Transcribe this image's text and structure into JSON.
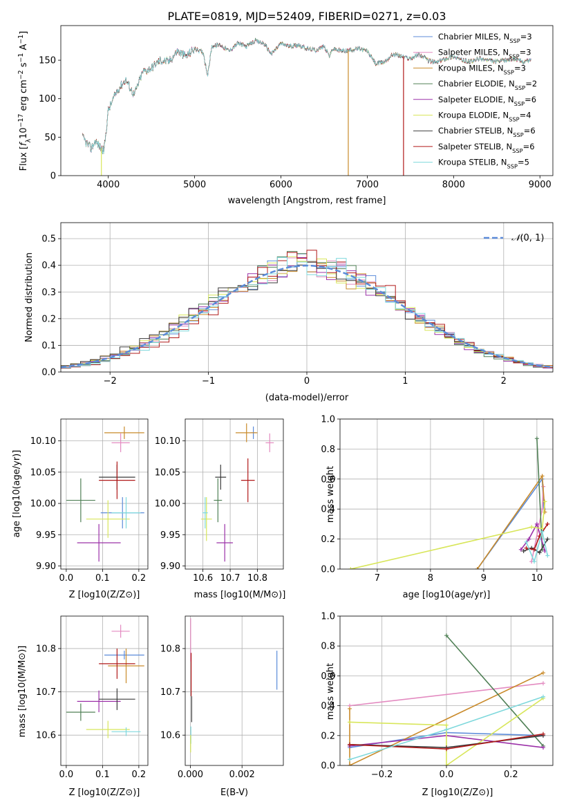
{
  "figure": {
    "title": "PLATE=0819, MJD=52409, FIBERID=0271, z=0.03"
  },
  "colors": {
    "Chabrier MILES": "#5b8bd9",
    "Salpeter MILES": "#e38ac0",
    "Kroupa MILES": "#c98a2a",
    "Chabrier ELODIE": "#4f7f55",
    "Salpeter ELODIE": "#9b30a8",
    "Kroupa ELODIE": "#d8e65a",
    "Chabrier STELIB": "#3a3a3a",
    "Salpeter STELIB": "#b01818",
    "Kroupa STELIB": "#7ed8dc"
  },
  "chart_data": [
    {
      "id": "spectrum",
      "type": "line",
      "title": "PLATE=0819, MJD=52409, FIBERID=0271, z=0.03",
      "xlabel": "wavelength [Angstrom, rest frame]",
      "ylabel": "Flux [f_λ 10^-17 erg cm^-2 s^-1 A^-1]",
      "xlim": [
        3450,
        9150
      ],
      "ylim": [
        0,
        195
      ],
      "xticks": [
        4000,
        5000,
        6000,
        7000,
        8000,
        9000
      ],
      "yticks": [
        0,
        50,
        100,
        150
      ],
      "grid": false,
      "legend_position": "top-right",
      "spectrum_x": [
        3700,
        3750,
        3800,
        3850,
        3900,
        3950,
        4000,
        4100,
        4200,
        4300,
        4400,
        4500,
        4600,
        4700,
        4800,
        4900,
        5000,
        5100,
        5150,
        5200,
        5300,
        5400,
        5500,
        5600,
        5700,
        5800,
        5890,
        6000,
        6100,
        6200,
        6300,
        6400,
        6500,
        6563,
        6600,
        6700,
        6800,
        6900,
        7000,
        7100,
        7200,
        7300,
        7400,
        7500,
        7600,
        7700,
        7800,
        7900,
        8000,
        8100,
        8200,
        8300,
        8400,
        8500,
        8600,
        8700,
        8800,
        8900
      ],
      "spectrum_y": [
        50,
        42,
        35,
        45,
        38,
        32,
        85,
        110,
        125,
        105,
        135,
        140,
        150,
        148,
        162,
        155,
        165,
        160,
        130,
        168,
        170,
        162,
        172,
        168,
        175,
        172,
        158,
        172,
        168,
        170,
        165,
        163,
        168,
        155,
        165,
        162,
        163,
        165,
        162,
        145,
        148,
        158,
        155,
        152,
        158,
        150,
        147,
        152,
        155,
        150,
        148,
        152,
        150,
        148,
        150,
        152,
        148,
        150
      ],
      "series": [
        {
          "name": "Chabrier MILES, N_SSP=3",
          "n_ssp": 3
        },
        {
          "name": "Salpeter MILES, N_SSP=3",
          "n_ssp": 3
        },
        {
          "name": "Kroupa MILES, N_SSP=3",
          "n_ssp": 3
        },
        {
          "name": "Chabrier ELODIE, N_SSP=2",
          "n_ssp": 2
        },
        {
          "name": "Salpeter ELODIE, N_SSP=6",
          "n_ssp": 6
        },
        {
          "name": "Kroupa ELODIE, N_SSP=4",
          "n_ssp": 4
        },
        {
          "name": "Chabrier STELIB, N_SSP=6",
          "n_ssp": 6
        },
        {
          "name": "Salpeter STELIB, N_SSP=6",
          "n_ssp": 6
        },
        {
          "name": "Kroupa STELIB, N_SSP=5",
          "n_ssp": 5
        }
      ],
      "legend_entries": [
        {
          "base": "Chabrier MILES, N",
          "sub": "SSP",
          "tail": "=3",
          "model": "Chabrier MILES"
        },
        {
          "base": "Salpeter MILES, N",
          "sub": "SSP",
          "tail": "=3",
          "model": "Salpeter MILES"
        },
        {
          "base": "Kroupa MILES, N",
          "sub": "SSP",
          "tail": "=3",
          "model": "Kroupa MILES"
        },
        {
          "base": "Chabrier ELODIE, N",
          "sub": "SSP",
          "tail": "=2",
          "model": "Chabrier ELODIE"
        },
        {
          "base": "Salpeter ELODIE, N",
          "sub": "SSP",
          "tail": "=6",
          "model": "Salpeter ELODIE"
        },
        {
          "base": "Kroupa ELODIE, N",
          "sub": "SSP",
          "tail": "=4",
          "model": "Kroupa ELODIE"
        },
        {
          "base": "Chabrier STELIB, N",
          "sub": "SSP",
          "tail": "=6",
          "model": "Chabrier STELIB"
        },
        {
          "base": "Salpeter STELIB, N",
          "sub": "SSP",
          "tail": "=6",
          "model": "Salpeter STELIB"
        },
        {
          "base": "Kroupa STELIB, N",
          "sub": "SSP",
          "tail": "=5",
          "model": "Kroupa STELIB"
        }
      ],
      "drops": [
        {
          "model": "Kroupa ELODIE",
          "x": 3920
        },
        {
          "model": "Kroupa MILES",
          "x": 6780
        },
        {
          "model": "Salpeter STELIB",
          "x": 7420
        }
      ]
    },
    {
      "id": "residuals",
      "type": "histogram",
      "xlabel": "(data-model)/error",
      "ylabel": "Normed distribution",
      "xlim": [
        -2.5,
        2.5
      ],
      "ylim": [
        0,
        0.56
      ],
      "xticks": [
        -2,
        -1,
        0,
        1,
        2
      ],
      "yticks": [
        0.0,
        0.1,
        0.2,
        0.3,
        0.4,
        0.5
      ],
      "grid": true,
      "legend_position": "top-right",
      "reference_curve": {
        "label": "N(0, 1)",
        "mu": 0,
        "sigma": 1
      },
      "bin_width": 0.1
    },
    {
      "id": "age_vs_Z",
      "type": "scatter",
      "xlabel": "Z [log10(Z/Z_sun)]",
      "ylabel": "age [log10(age/yr)]",
      "xlim": [
        -0.015,
        0.225
      ],
      "ylim": [
        9.895,
        10.135
      ],
      "xticks": [
        0.0,
        0.1,
        0.2
      ],
      "yticks": [
        9.9,
        9.95,
        10.0,
        10.05,
        10.1
      ],
      "grid": true,
      "points": [
        {
          "model": "Chabrier MILES",
          "x": 0.155,
          "y": 9.985,
          "xerr": 0.06,
          "yerr": 0.025
        },
        {
          "model": "Salpeter MILES",
          "x": 0.15,
          "y": 10.097,
          "xerr": 0.025,
          "yerr": 0.015
        },
        {
          "model": "Kroupa MILES",
          "x": 0.16,
          "y": 10.113,
          "xerr": 0.055,
          "yerr": 0.01
        },
        {
          "model": "Chabrier ELODIE",
          "x": 0.04,
          "y": 10.005,
          "xerr": 0.04,
          "yerr": 0.035
        },
        {
          "model": "Salpeter ELODIE",
          "x": 0.09,
          "y": 9.937,
          "xerr": 0.06,
          "yerr": 0.03
        },
        {
          "model": "Kroupa ELODIE",
          "x": 0.115,
          "y": 9.975,
          "xerr": 0.06,
          "yerr": 0.03
        },
        {
          "model": "Chabrier STELIB",
          "x": 0.14,
          "y": 10.042,
          "xerr": 0.05,
          "yerr": 0.02
        },
        {
          "model": "Salpeter STELIB",
          "x": 0.14,
          "y": 10.037,
          "xerr": 0.05,
          "yerr": 0.03
        },
        {
          "model": "Kroupa STELIB",
          "x": 0.165,
          "y": 9.985,
          "xerr": 0.04,
          "yerr": 0.025
        }
      ]
    },
    {
      "id": "age_vs_mass",
      "type": "scatter",
      "xlabel": "mass [log10(M/M_sun)]",
      "ylabel": "",
      "xlim": [
        10.535,
        10.895
      ],
      "ylim": [
        9.895,
        10.135
      ],
      "xticks": [
        10.6,
        10.7,
        10.8
      ],
      "yticks": [
        9.9,
        9.95,
        10.0,
        10.05,
        10.1
      ],
      "grid": true,
      "points": [
        {
          "model": "Chabrier MILES",
          "x": 10.785,
          "y": 10.113,
          "xerr": 0.01,
          "yerr": 0.01
        },
        {
          "model": "Salpeter MILES",
          "x": 10.845,
          "y": 10.097,
          "xerr": 0.015,
          "yerr": 0.015
        },
        {
          "model": "Kroupa MILES",
          "x": 10.76,
          "y": 10.113,
          "xerr": 0.04,
          "yerr": 0.015
        },
        {
          "model": "Chabrier ELODIE",
          "x": 10.655,
          "y": 10.005,
          "xerr": 0.015,
          "yerr": 0.035
        },
        {
          "model": "Salpeter ELODIE",
          "x": 10.68,
          "y": 9.937,
          "xerr": 0.03,
          "yerr": 0.03
        },
        {
          "model": "Kroupa ELODIE",
          "x": 10.613,
          "y": 9.975,
          "xerr": 0.02,
          "yerr": 0.035
        },
        {
          "model": "Chabrier STELIB",
          "x": 10.665,
          "y": 10.042,
          "xerr": 0.02,
          "yerr": 0.02
        },
        {
          "model": "Salpeter STELIB",
          "x": 10.765,
          "y": 10.037,
          "xerr": 0.025,
          "yerr": 0.035
        },
        {
          "model": "Kroupa STELIB",
          "x": 10.608,
          "y": 9.985,
          "xerr": 0.01,
          "yerr": 0.025
        }
      ]
    },
    {
      "id": "weight_vs_age",
      "type": "line",
      "xlabel": "age [log10(age/yr)]",
      "ylabel": "mass weight",
      "xlim": [
        6.3,
        10.3
      ],
      "ylim": [
        0,
        1.0
      ],
      "xticks": [
        7,
        8,
        9,
        10
      ],
      "yticks": [
        0.0,
        0.2,
        0.4,
        0.6,
        0.8,
        1.0
      ],
      "grid": true,
      "series": [
        {
          "model": "Chabrier MILES",
          "x": [
            8.88,
            10.1,
            10.13
          ],
          "y": [
            0.0,
            0.6,
            0.4
          ]
        },
        {
          "model": "Salpeter MILES",
          "x": [
            9.9,
            10.1,
            10.12
          ],
          "y": [
            0.05,
            0.4,
            0.55
          ]
        },
        {
          "model": "Kroupa MILES",
          "x": [
            8.88,
            10.1,
            10.15
          ],
          "y": [
            0.0,
            0.62,
            0.38
          ]
        },
        {
          "model": "Chabrier ELODIE",
          "x": [
            10.0,
            10.1
          ],
          "y": [
            0.87,
            0.13
          ]
        },
        {
          "model": "Salpeter ELODIE",
          "x": [
            9.7,
            9.85,
            10.0,
            10.15
          ],
          "y": [
            0.13,
            0.2,
            0.3,
            0.12
          ]
        },
        {
          "model": "Kroupa ELODIE",
          "x": [
            6.5,
            9.9,
            10.1,
            10.15
          ],
          "y": [
            0.0,
            0.28,
            0.27,
            0.45
          ]
        },
        {
          "model": "Chabrier STELIB",
          "x": [
            9.75,
            9.9,
            10.05,
            10.2
          ],
          "y": [
            0.12,
            0.14,
            0.11,
            0.2
          ]
        },
        {
          "model": "Salpeter STELIB",
          "x": [
            9.8,
            9.95,
            10.05,
            10.2
          ],
          "y": [
            0.14,
            0.13,
            0.22,
            0.3
          ]
        },
        {
          "model": "Kroupa STELIB",
          "x": [
            9.8,
            9.95,
            10.1,
            10.2
          ],
          "y": [
            0.18,
            0.05,
            0.25,
            0.09
          ]
        }
      ]
    },
    {
      "id": "mass_vs_Z",
      "type": "scatter",
      "xlabel": "Z [log10(Z/Z_sun)]",
      "ylabel": "mass [log10(M/M_sun)]",
      "xlim": [
        -0.015,
        0.225
      ],
      "ylim": [
        10.53,
        10.875
      ],
      "xticks": [
        0.0,
        0.1,
        0.2
      ],
      "yticks": [
        10.6,
        10.7,
        10.8
      ],
      "grid": true,
      "points": [
        {
          "model": "Chabrier MILES",
          "x": 0.16,
          "y": 10.785,
          "xerr": 0.055,
          "yerr": 0.01
        },
        {
          "model": "Salpeter MILES",
          "x": 0.15,
          "y": 10.84,
          "xerr": 0.025,
          "yerr": 0.015
        },
        {
          "model": "Kroupa MILES",
          "x": 0.165,
          "y": 10.76,
          "xerr": 0.05,
          "yerr": 0.04
        },
        {
          "model": "Chabrier ELODIE",
          "x": 0.04,
          "y": 10.653,
          "xerr": 0.04,
          "yerr": 0.02
        },
        {
          "model": "Salpeter ELODIE",
          "x": 0.09,
          "y": 10.678,
          "xerr": 0.06,
          "yerr": 0.025
        },
        {
          "model": "Kroupa ELODIE",
          "x": 0.115,
          "y": 10.613,
          "xerr": 0.06,
          "yerr": 0.02
        },
        {
          "model": "Chabrier STELIB",
          "x": 0.14,
          "y": 10.683,
          "xerr": 0.05,
          "yerr": 0.025
        },
        {
          "model": "Salpeter STELIB",
          "x": 0.14,
          "y": 10.765,
          "xerr": 0.05,
          "yerr": 0.035
        },
        {
          "model": "Kroupa STELIB",
          "x": 0.165,
          "y": 10.608,
          "xerr": 0.04,
          "yerr": 0.01
        }
      ]
    },
    {
      "id": "mass_vs_EBV",
      "type": "scatter",
      "xlabel": "E(B-V)",
      "ylabel": "",
      "xlim": [
        -0.0002,
        0.0036
      ],
      "ylim": [
        10.53,
        10.875
      ],
      "xticks": [
        0.0,
        0.002
      ],
      "yticks": [
        10.6,
        10.7,
        10.8
      ],
      "grid": true,
      "points": [
        {
          "model": "Salpeter MILES",
          "x": 1e-05,
          "y": 10.82,
          "xerr": 0,
          "yerr": 0.05
        },
        {
          "model": "Salpeter STELIB",
          "x": 3e-05,
          "y": 10.74,
          "xerr": 0,
          "yerr": 0.05
        },
        {
          "model": "Chabrier STELIB",
          "x": 5e-05,
          "y": 10.66,
          "xerr": 0,
          "yerr": 0.03
        },
        {
          "model": "Kroupa STELIB",
          "x": 2e-05,
          "y": 10.6,
          "xerr": 0,
          "yerr": 0.02
        },
        {
          "model": "Kroupa ELODIE",
          "x": 1e-05,
          "y": 10.58,
          "xerr": 0,
          "yerr": 0.02
        },
        {
          "model": "Chabrier MILES",
          "x": 0.00335,
          "y": 10.75,
          "xerr": 0,
          "yerr": 0.045
        }
      ]
    },
    {
      "id": "weight_vs_Z",
      "type": "line",
      "xlabel": "Z [log10(Z/Z_sun)]",
      "ylabel": "mass weight",
      "xlim": [
        -0.33,
        0.33
      ],
      "ylim": [
        0,
        1.0
      ],
      "xticks": [
        -0.2,
        0.0,
        0.2
      ],
      "yticks": [
        0.0,
        0.2,
        0.4,
        0.6,
        0.8,
        1.0
      ],
      "grid": true,
      "series": [
        {
          "model": "Chabrier MILES",
          "x": [
            -0.3,
            0.0,
            0.3
          ],
          "y": [
            0.12,
            0.22,
            0.2
          ]
        },
        {
          "model": "Salpeter MILES",
          "x": [
            -0.3,
            0.3
          ],
          "y": [
            0.4,
            0.55
          ]
        },
        {
          "model": "Kroupa MILES",
          "x": [
            -0.3,
            -0.3,
            0.3
          ],
          "y": [
            0.38,
            0.0,
            0.62
          ]
        },
        {
          "model": "Chabrier ELODIE",
          "x": [
            0.0,
            0.3
          ],
          "y": [
            0.87,
            0.13
          ]
        },
        {
          "model": "Salpeter ELODIE",
          "x": [
            -0.3,
            0.0,
            0.3
          ],
          "y": [
            0.13,
            0.2,
            0.12
          ]
        },
        {
          "model": "Kroupa ELODIE",
          "x": [
            -0.3,
            0.0,
            0.0,
            0.3
          ],
          "y": [
            0.29,
            0.27,
            0.0,
            0.45
          ]
        },
        {
          "model": "Chabrier STELIB",
          "x": [
            -0.3,
            0.0,
            0.3
          ],
          "y": [
            0.14,
            0.12,
            0.2
          ]
        },
        {
          "model": "Salpeter STELIB",
          "x": [
            -0.3,
            0.0,
            0.3
          ],
          "y": [
            0.14,
            0.11,
            0.21
          ]
        },
        {
          "model": "Kroupa STELIB",
          "x": [
            -0.3,
            0.0,
            0.3
          ],
          "y": [
            0.04,
            0.24,
            0.46
          ]
        }
      ]
    }
  ]
}
